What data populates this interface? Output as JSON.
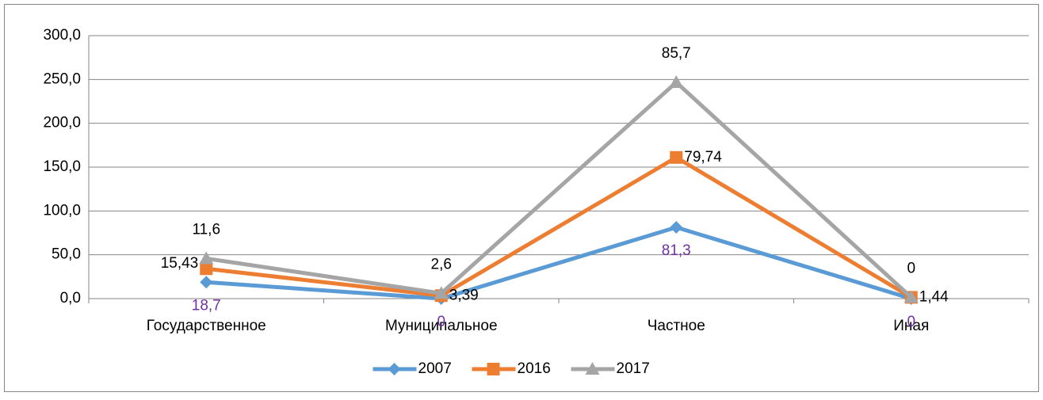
{
  "chart_data": {
    "type": "line",
    "stacked": true,
    "categories": [
      "Государственное",
      "Муниципальное",
      "Частное",
      "Иная"
    ],
    "series": [
      {
        "name": "2007",
        "color": "#5b9bd5",
        "marker": "diamond",
        "values": [
          18.7,
          0,
          81.3,
          0
        ],
        "value_labels": [
          "18,7",
          "0",
          "81,3",
          "0"
        ],
        "label_color": "#7030a0"
      },
      {
        "name": "2016",
        "color": "#ed7d31",
        "marker": "square",
        "values": [
          15.43,
          3.39,
          79.74,
          1.44
        ],
        "value_labels": [
          "15,43",
          "3,39",
          "79,74",
          "1,44"
        ],
        "label_color": "#000000"
      },
      {
        "name": "2017",
        "color": "#a5a5a5",
        "marker": "triangle",
        "values": [
          11.6,
          2.6,
          85.7,
          0
        ],
        "value_labels": [
          "11,6",
          "2,6",
          "85,7",
          "0"
        ],
        "label_color": "#000000"
      }
    ],
    "ylim": [
      0,
      300
    ],
    "yticks": [
      {
        "value": 0,
        "label": "0,0"
      },
      {
        "value": 50,
        "label": "50,0"
      },
      {
        "value": 100,
        "label": "100,0"
      },
      {
        "value": 150,
        "label": "150,0"
      },
      {
        "value": 200,
        "label": "200,0"
      },
      {
        "value": 250,
        "label": "250,0"
      },
      {
        "value": 300,
        "label": "300,0"
      }
    ],
    "grid": true,
    "legend": "bottom"
  }
}
